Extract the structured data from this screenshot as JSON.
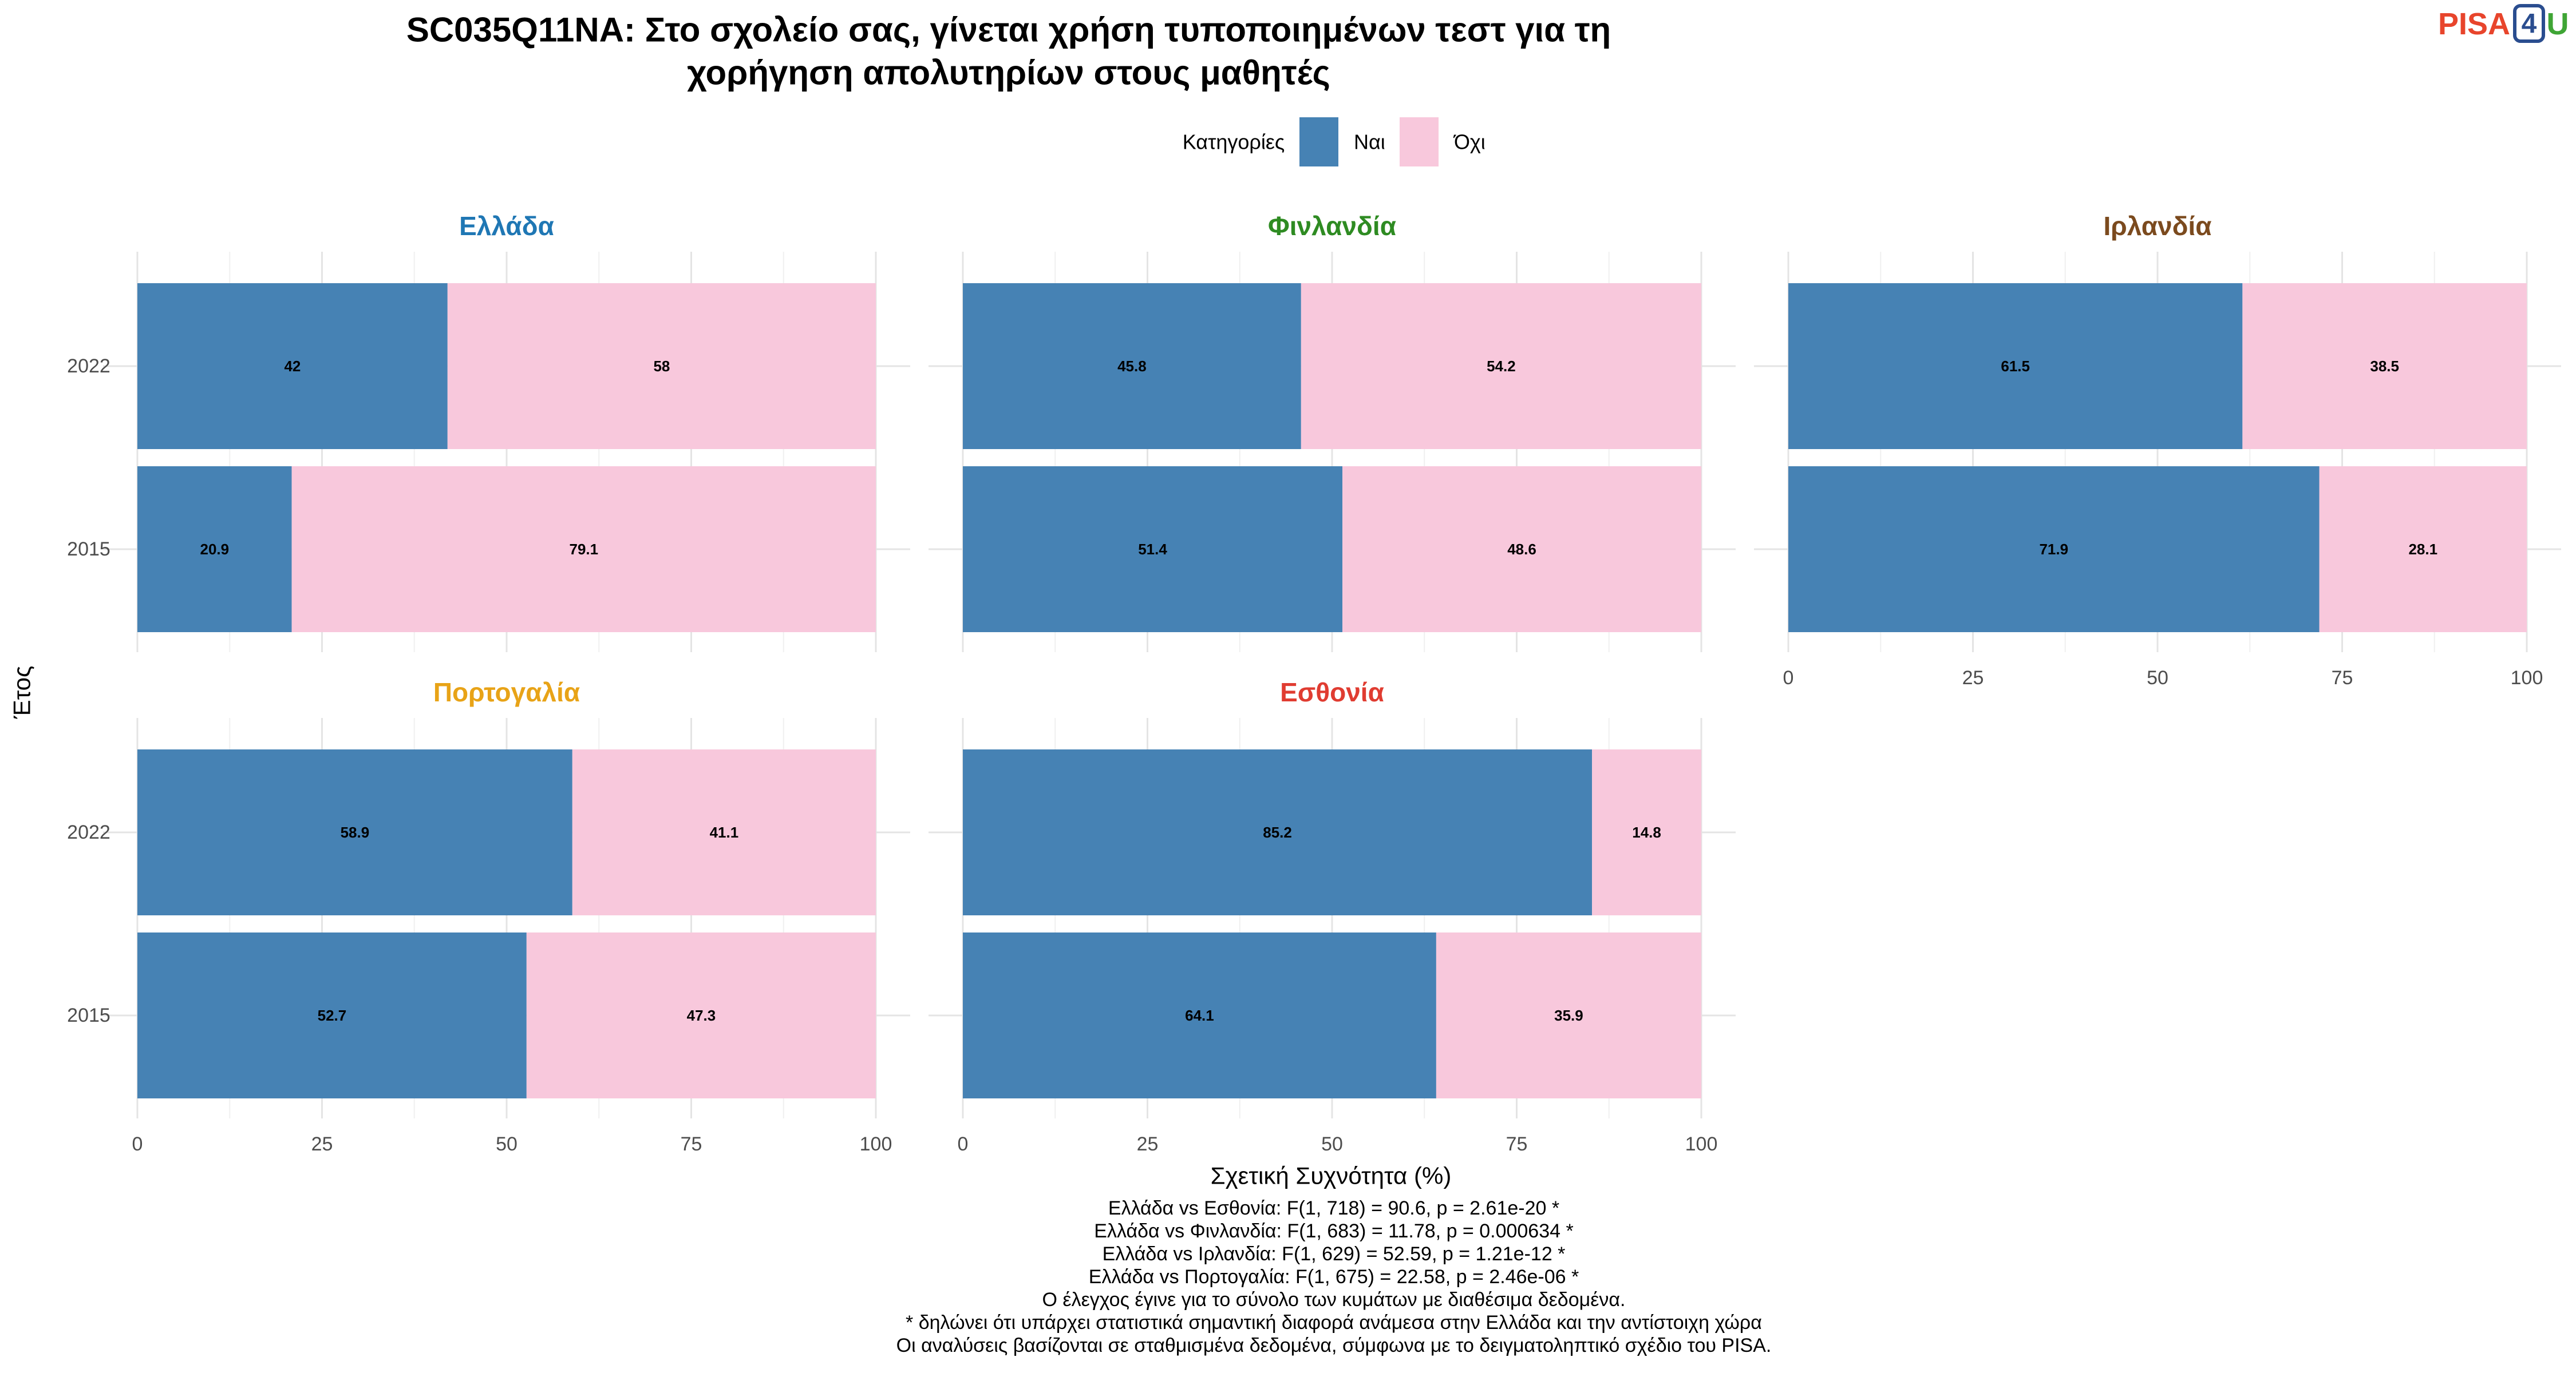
{
  "logo": {
    "text_a": "PISA",
    "text_b": "4",
    "text_c": "U"
  },
  "chart_data": {
    "type": "bar",
    "stacked": true,
    "orientation": "horizontal",
    "title": "SC035Q11NA: Στο σχολείο σας, γίνεται χρήση τυποποιημένων τεστ για τη χορήγηση απολυτηρίων στους μαθητές",
    "title_lines": [
      "SC035Q11NA: Στο σχολείο σας, γίνεται χρήση τυποποιημένων τεστ για τη",
      "χορήγηση απολυτηρίων στους μαθητές"
    ],
    "legend": {
      "title": "Κατηγορίες",
      "position": "top",
      "entries": [
        {
          "label": "Ναι",
          "color": "#4682B4"
        },
        {
          "label": "Όχι",
          "color": "#F8C8DC"
        }
      ]
    },
    "xlabel": "Σχετική Συχνότητα (%)",
    "ylabel": "Έτος",
    "xlim": [
      0,
      100
    ],
    "xticks": [
      "0",
      "25",
      "50",
      "75",
      "100"
    ],
    "categories": [
      "2022",
      "2015"
    ],
    "grid": true,
    "panels": [
      {
        "name": "Ελλάδα",
        "color": "#1F77B4",
        "rows": [
          {
            "year": "2022",
            "values": [
              42,
              58
            ],
            "labels": [
              "42",
              "58"
            ]
          },
          {
            "year": "2015",
            "values": [
              20.9,
              79.1
            ],
            "labels": [
              "20.9",
              "79.1"
            ]
          }
        ]
      },
      {
        "name": "Φινλανδία",
        "color": "#2E8B22",
        "rows": [
          {
            "year": "2022",
            "values": [
              45.8,
              54.2
            ],
            "labels": [
              "45.8",
              "54.2"
            ]
          },
          {
            "year": "2015",
            "values": [
              51.4,
              48.6
            ],
            "labels": [
              "51.4",
              "48.6"
            ]
          }
        ]
      },
      {
        "name": "Ιρλανδία",
        "color": "#7B4A1E",
        "rows": [
          {
            "year": "2022",
            "values": [
              61.5,
              38.5
            ],
            "labels": [
              "61.5",
              "38.5"
            ]
          },
          {
            "year": "2015",
            "values": [
              71.9,
              28.1
            ],
            "labels": [
              "71.9",
              "28.1"
            ]
          }
        ]
      },
      {
        "name": "Πορτογαλία",
        "color": "#E8A317",
        "rows": [
          {
            "year": "2022",
            "values": [
              58.9,
              41.1
            ],
            "labels": [
              "58.9",
              "41.1"
            ]
          },
          {
            "year": "2015",
            "values": [
              52.7,
              47.3
            ],
            "labels": [
              "52.7",
              "47.3"
            ]
          }
        ]
      },
      {
        "name": "Εσθονία",
        "color": "#E03C31",
        "rows": [
          {
            "year": "2022",
            "values": [
              85.2,
              14.8
            ],
            "labels": [
              "85.2",
              "14.8"
            ]
          },
          {
            "year": "2015",
            "values": [
              64.1,
              35.9
            ],
            "labels": [
              "64.1",
              "35.9"
            ]
          }
        ]
      }
    ],
    "footnotes": [
      "Ελλάδα vs Εσθονία: F(1, 718) = 90.6, p = 2.61e-20 *",
      "Ελλάδα vs Φινλανδία: F(1, 683) = 11.78, p = 0.000634 *",
      "Ελλάδα vs Ιρλανδία: F(1, 629) = 52.59, p = 1.21e-12 *",
      "Ελλάδα vs Πορτογαλία: F(1, 675) = 22.58, p = 2.46e-06 *",
      "Ο έλεγχος έγινε για το σύνολο των κυμάτων με διαθέσιμα δεδομένα.",
      "* δηλώνει ότι υπάρχει στατιστικά σημαντική διαφορά ανάμεσα στην Ελλάδα και την αντίστοιχη χώρα",
      "Οι αναλύσεις βασίζονται σε σταθμισμένα δεδομένα, σύμφωνα με το δειγματοληπτικό σχέδιο του PISA."
    ]
  }
}
